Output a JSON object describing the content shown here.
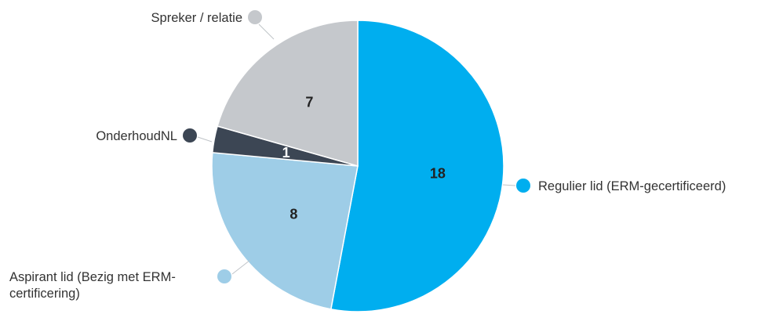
{
  "chart_data": {
    "type": "pie",
    "title": "",
    "slices": [
      {
        "label": "Regulier lid (ERM-gecertificeerd)",
        "value": 18,
        "color": "#00aeef",
        "value_color": "#222222"
      },
      {
        "label": "Aspirant lid (Bezig met ERM-certificering)",
        "value": 8,
        "color": "#9ecde7",
        "value_color": "#222222"
      },
      {
        "label": "OnderhoudNL",
        "value": 1,
        "color": "#3c4654",
        "value_color": "#ffffff"
      },
      {
        "label": "Spreker / relatie",
        "value": 7,
        "color": "#c5c8cc",
        "value_color": "#222222"
      }
    ]
  }
}
